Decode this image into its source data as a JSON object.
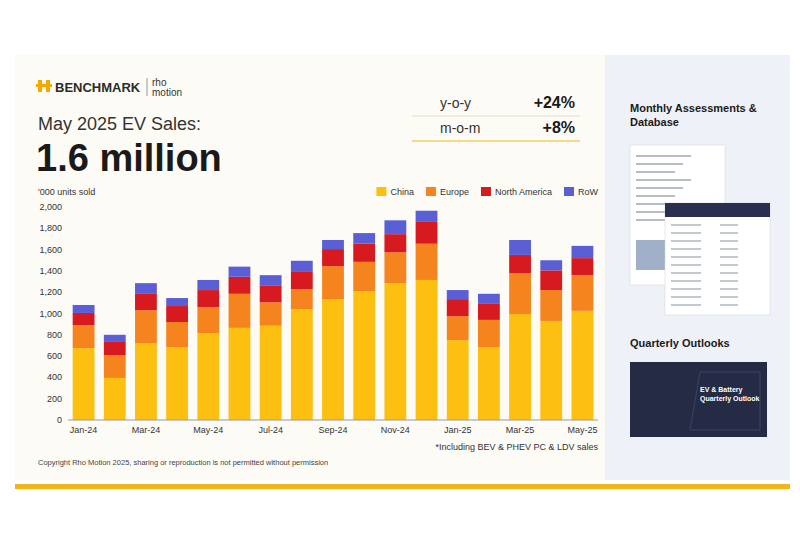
{
  "header": {
    "logo": "BENCHMARK",
    "logo2_top": "rho",
    "logo2_bottom": "motion",
    "title": "May 2025 EV Sales:",
    "headline": "1.6 million",
    "stats": [
      {
        "label": "y-o-y",
        "value": "+24%"
      },
      {
        "label": "m-o-m",
        "value": "+8%"
      }
    ]
  },
  "chart_data": {
    "type": "bar",
    "stacked": true,
    "y_label": "'000 units sold",
    "categories": [
      "Jan-24",
      null,
      "Mar-24",
      null,
      "May-24",
      null,
      "Jul-24",
      null,
      "Sep-24",
      null,
      "Nov-24",
      null,
      "Jan-25",
      null,
      "Mar-25",
      null,
      "May-25"
    ],
    "series": [
      {
        "name": "China",
        "color": "#fdc010",
        "values": [
          675,
          395,
          720,
          685,
          815,
          865,
          885,
          1040,
          1135,
          1210,
          1285,
          1315,
          750,
          685,
          995,
          930,
          1025
        ]
      },
      {
        "name": "Europe",
        "color": "#f5841f",
        "values": [
          215,
          215,
          310,
          235,
          245,
          320,
          220,
          190,
          310,
          275,
          290,
          340,
          225,
          255,
          385,
          290,
          335
        ]
      },
      {
        "name": "North America",
        "color": "#d71920",
        "values": [
          115,
          130,
          160,
          150,
          160,
          160,
          160,
          160,
          160,
          170,
          170,
          205,
          160,
          150,
          170,
          185,
          160
        ]
      },
      {
        "name": "RoW",
        "color": "#5b5fd6",
        "values": [
          75,
          60,
          95,
          75,
          95,
          95,
          95,
          105,
          85,
          100,
          130,
          105,
          85,
          95,
          140,
          95,
          115
        ]
      }
    ],
    "ylim": [
      0,
      2000
    ],
    "yticks": [
      0,
      200,
      400,
      600,
      800,
      {
        "value": 1000,
        "label": "1,000"
      },
      {
        "value": 1200,
        "label": "1,200"
      },
      {
        "value": 1400,
        "label": "1,400"
      },
      {
        "value": 1600,
        "label": "1,600"
      },
      {
        "value": 1800,
        "label": "1,800"
      },
      {
        "value": 2000,
        "label": "2,000"
      }
    ],
    "grid": false,
    "legend": "top-right",
    "annotation": "*Including BEV & PHEV PC & LDV sales"
  },
  "footer": {
    "copyright": "Copyright Rho Motion 2025, sharing or reproduction is not permitted without permission"
  },
  "sidebar": {
    "section1": "Monthly Assessments & Database",
    "section2": "Quarterly Outlooks",
    "report_title": "EV & Battery Quarterly Outlook"
  }
}
